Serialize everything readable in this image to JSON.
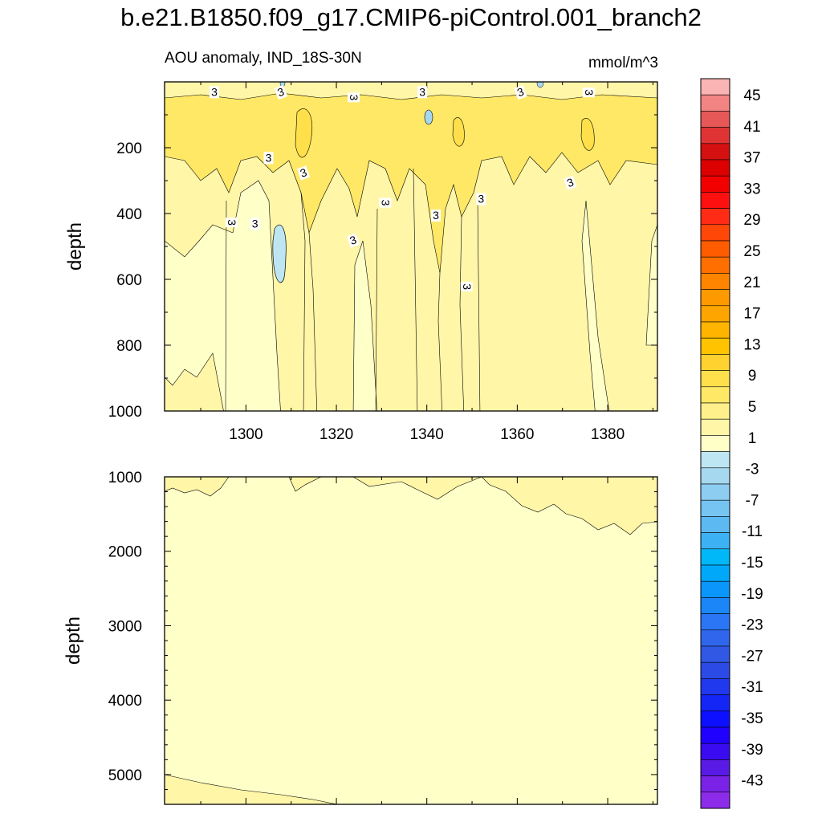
{
  "title": "b.e21.B1850.f09_g17.CMIP6-piControl.001_branch2",
  "chart_data": {
    "type": "contour",
    "variable_label": "AOU anomaly, IND_18S-30N",
    "units": "mmol/m^3",
    "x_ticks": [
      1300,
      1320,
      1340,
      1360,
      1380
    ],
    "x_range": [
      1282,
      1391
    ],
    "panels": [
      {
        "name": "upper",
        "ylabel": "depth",
        "y_range": [
          0,
          1000
        ],
        "y_ticks": [
          200,
          400,
          600,
          800,
          1000
        ],
        "contour_labels": [
          "3",
          "3",
          "3",
          "3",
          "3",
          "3",
          "3",
          "3",
          "3",
          "3",
          "3",
          "3",
          "3",
          "3",
          "3",
          "3"
        ]
      },
      {
        "name": "lower",
        "ylabel": "depth",
        "y_range": [
          1000,
          5400
        ],
        "y_ticks": [
          1000,
          2000,
          3000,
          4000,
          5000
        ]
      }
    ],
    "colorbar": {
      "labels": [
        "45",
        "41",
        "37",
        "33",
        "29",
        "25",
        "21",
        "17",
        "13",
        "9",
        "5",
        "1",
        "-3",
        "-7",
        "-11",
        "-15",
        "-19",
        "-23",
        "-27",
        "-31",
        "-35",
        "-39",
        "-43"
      ],
      "colors": [
        "#fbb4b4",
        "#f38484",
        "#e65858",
        "#e03434",
        "#d41010",
        "#dc0000",
        "#f20000",
        "#ff1010",
        "#ff2b14",
        "#ff4708",
        "#ff5c00",
        "#ff6f00",
        "#ff8500",
        "#ff9900",
        "#ffa500",
        "#ffb400",
        "#ffc300",
        "#ffd230",
        "#ffe04a",
        "#ffe866",
        "#fff08c",
        "#fff6a8",
        "#ffffc8",
        "#bee6f2",
        "#a6d8f0",
        "#8ecdf2",
        "#76c4f2",
        "#5cb9f2",
        "#3cb2f4",
        "#00b8f8",
        "#00a8fa",
        "#0a96fa",
        "#1a86f8",
        "#2a76f4",
        "#3066ec",
        "#3058e4",
        "#2c4ae6",
        "#2038ee",
        "#1426f6",
        "#0c10fe",
        "#2000ff",
        "#3a0af0",
        "#5a1ae6",
        "#7a22e6",
        "#8c2cea"
      ]
    }
  }
}
